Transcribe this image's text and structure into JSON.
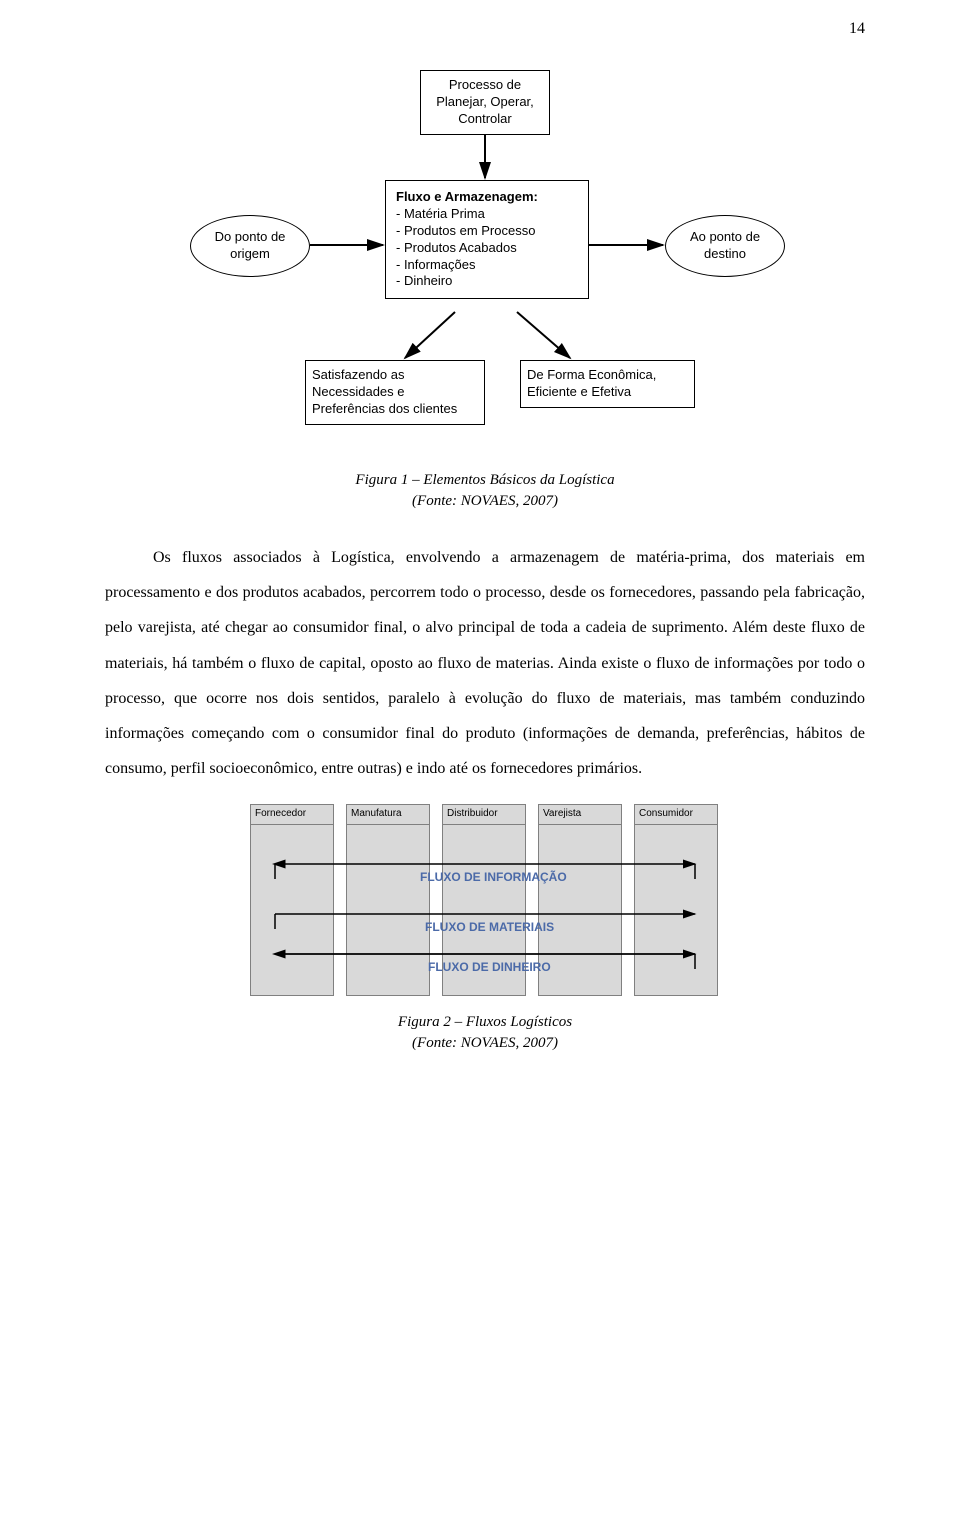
{
  "page_number": "14",
  "fig1": {
    "box_top": "Processo de\nPlanejar, Operar,\nControlar",
    "ellipse_left": "Do ponto de\norigem",
    "ellipse_right": "Ao ponto de\ndestino",
    "box_center_title": "Fluxo e Armazenagem:",
    "box_center_items": "- Matéria Prima\n- Produtos em Processo\n- Produtos Acabados\n- Informações\n- Dinheiro",
    "box_bottom_left": "Satisfazendo as\nNecessidades e\nPreferências dos clientes",
    "box_bottom_right": "De Forma Econômica,\nEficiente e Efetiva",
    "caption_line1": "Figura 1 – Elementos Básicos da Logística",
    "caption_line2": "(Fonte: NOVAES, 2007)"
  },
  "paragraph": "Os fluxos associados à Logística, envolvendo a armazenagem de matéria-prima, dos materiais em processamento e dos produtos acabados, percorrem todo o processo, desde os fornecedores, passando pela fabricação, pelo varejista, até chegar ao consumidor final, o alvo principal de toda a cadeia de suprimento. Além deste fluxo de materiais, há também o fluxo de capital, oposto ao fluxo de materias. Ainda existe o fluxo de informações por todo o processo, que ocorre nos dois sentidos, paralelo à evolução do fluxo de materiais, mas também conduzindo informações começando com o consumidor final do produto (informações de demanda, preferências, hábitos de consumo, perfil socioeconômico, entre outras) e indo até os fornecedores primários.",
  "fig2": {
    "columns": [
      "Fornecedor",
      "Manufatura",
      "Distribuidor",
      "Varejista",
      "Consumidor"
    ],
    "flows": [
      "FLUXO DE INFORMAÇÃO",
      "FLUXO DE MATERIAIS",
      "FLUXO DE DINHEIRO"
    ],
    "flow_color": "#4b6aa8",
    "caption_line1": "Figura 2 – Fluxos Logísticos",
    "caption_line2": "(Fonte: NOVAES, 2007)"
  }
}
